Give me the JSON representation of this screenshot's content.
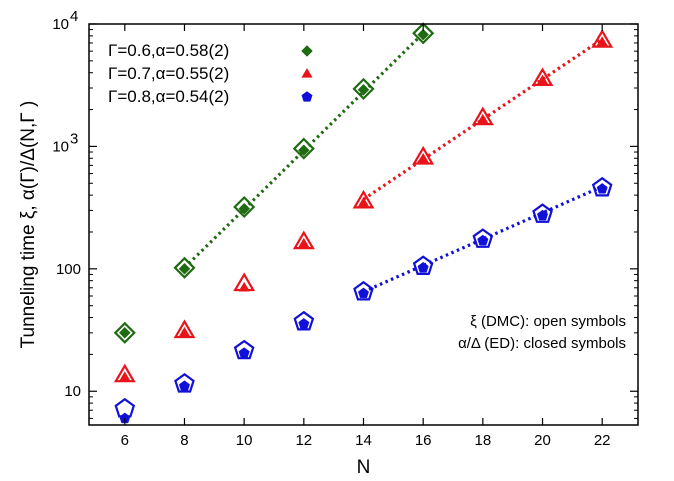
{
  "chart_data": {
    "type": "scatter",
    "xlabel": "N",
    "ylabel": "Tunneling time ξ, α(Γ)/Δ(N,Γ )",
    "xlim": [
      4.8,
      23.2
    ],
    "ylim": [
      5.3,
      10000
    ],
    "y_scale": "log",
    "x_ticks": [
      6,
      8,
      10,
      12,
      14,
      16,
      18,
      20,
      22
    ],
    "y_ticks": [
      {
        "value": 10,
        "label": "10"
      },
      {
        "value": 100,
        "label": "100"
      },
      {
        "value": 1000,
        "label": "10",
        "exp": "3"
      },
      {
        "value": 10000,
        "label": "10",
        "exp": "4"
      }
    ],
    "legend_position": "top-left",
    "series": [
      {
        "name": "Γ=0.6,α=0.58(2)",
        "color": "#1f6b12",
        "marker": "diamond",
        "open": {
          "x": [
            6,
            8,
            10,
            12,
            14,
            16
          ],
          "y": [
            30,
            102,
            320,
            960,
            2950,
            8400
          ]
        },
        "closed": {
          "x": [
            6,
            8,
            10,
            12,
            14,
            16
          ],
          "y": [
            30,
            100,
            310,
            930,
            2900,
            8200
          ]
        },
        "fit": {
          "x": [
            8,
            16
          ],
          "y": [
            102,
            8400
          ]
        }
      },
      {
        "name": "Γ=0.7,α=0.55(2)",
        "color": "#e8141a",
        "marker": "triangle",
        "open": {
          "x": [
            6,
            8,
            10,
            12,
            14,
            16,
            18,
            20,
            22
          ],
          "y": [
            13.5,
            31,
            75,
            165,
            355,
            810,
            1700,
            3550,
            7300
          ]
        },
        "closed": {
          "x": [
            6,
            8,
            10,
            12,
            14,
            16,
            18,
            20,
            22
          ],
          "y": [
            13,
            30,
            70,
            160,
            345,
            790,
            1650,
            3450,
            7100
          ]
        },
        "fit": {
          "x": [
            14,
            22
          ],
          "y": [
            370,
            7500
          ]
        }
      },
      {
        "name": "Γ=0.8,α=0.54(2)",
        "color": "#1010d8",
        "marker": "pentagon",
        "open": {
          "x": [
            6,
            8,
            10,
            12,
            14,
            16,
            18,
            20,
            22
          ],
          "y": [
            7.2,
            11.5,
            21.5,
            37,
            65,
            105,
            175,
            280,
            460
          ]
        },
        "closed": {
          "x": [
            6,
            8,
            10,
            12,
            14,
            16,
            18,
            20,
            22
          ],
          "y": [
            6,
            11,
            20.5,
            35.5,
            63,
            102,
            170,
            272,
            450
          ]
        },
        "fit": {
          "x": [
            14,
            22
          ],
          "y": [
            65,
            470
          ]
        }
      }
    ],
    "annotations": [
      "ξ (DMC): open symbols",
      "α/Δ (ED): closed symbols"
    ]
  }
}
